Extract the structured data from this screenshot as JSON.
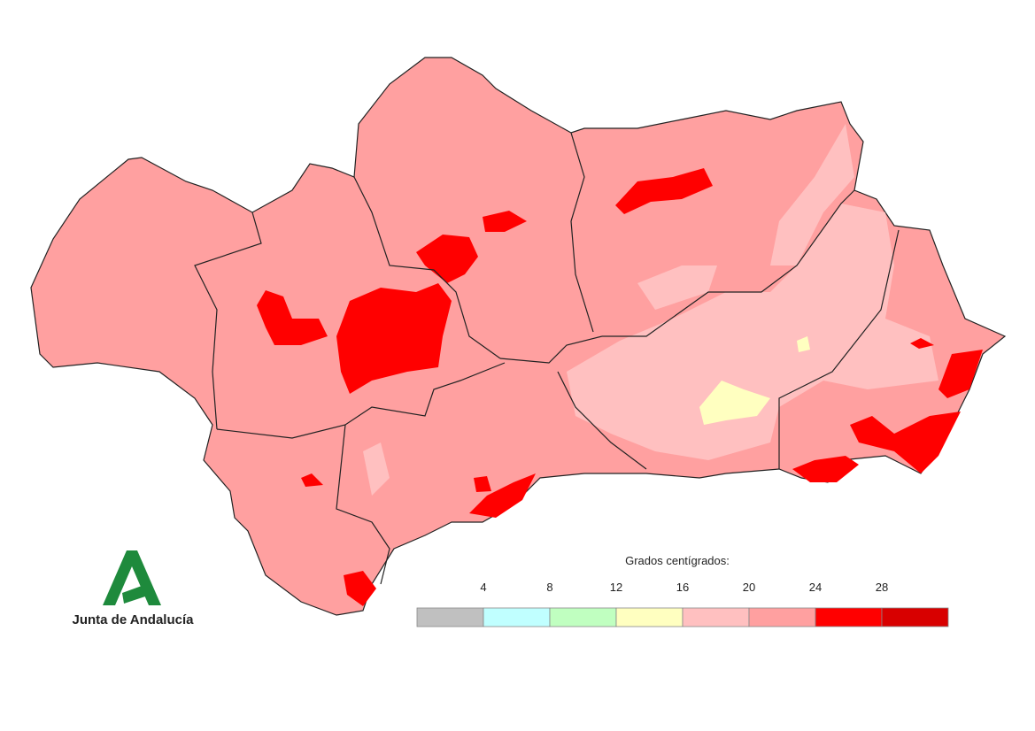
{
  "logo": {
    "text": "Junta de Andalucía"
  },
  "legend": {
    "title": "Grados centígrados:",
    "ticks": [
      4,
      8,
      12,
      16,
      20,
      24,
      28
    ],
    "colors": [
      "#c0c0c0",
      "#c0ffff",
      "#c0ffc0",
      "#ffffc0",
      "#ffc0c0",
      "#ffa0a0",
      "#ff0000",
      "#d80000"
    ]
  }
}
